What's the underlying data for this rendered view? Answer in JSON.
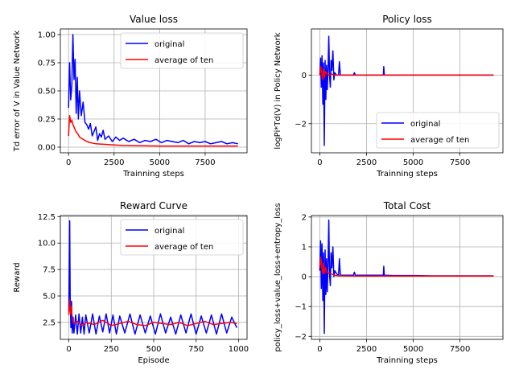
{
  "chart_data": [
    {
      "type": "line",
      "title": "Value loss",
      "xlabel": "Trainning steps",
      "ylabel": "Td error of V in Value Network",
      "xlim": [
        -450,
        9800
      ],
      "ylim": [
        -0.05,
        1.05
      ],
      "xticks": [
        0,
        2500,
        5000,
        7500
      ],
      "xtick_labels": [
        "0",
        "2500",
        "5000",
        "7500"
      ],
      "yticks": [
        0.0,
        0.25,
        0.5,
        0.75,
        1.0
      ],
      "ytick_labels": [
        "0.00",
        "0.25",
        "0.50",
        "0.75",
        "1.00"
      ],
      "grid": true,
      "legend": {
        "placement": "top-right",
        "entries": [
          "original",
          "average of ten"
        ]
      },
      "series": [
        {
          "name": "original",
          "color": "#0000ff",
          "x": [
            0,
            60,
            120,
            180,
            240,
            300,
            360,
            420,
            480,
            540,
            600,
            700,
            800,
            900,
            1000,
            1100,
            1200,
            1300,
            1400,
            1500,
            1600,
            1700,
            1800,
            1900,
            2000,
            2200,
            2400,
            2600,
            2800,
            3000,
            3300,
            3600,
            3900,
            4200,
            4500,
            4800,
            5100,
            5400,
            5700,
            6000,
            6300,
            6600,
            6900,
            7200,
            7500,
            7800,
            8100,
            8400,
            8700,
            9000,
            9300
          ],
          "y": [
            0.35,
            0.75,
            0.42,
            0.55,
            1.0,
            0.6,
            0.78,
            0.3,
            0.62,
            0.25,
            0.5,
            0.28,
            0.4,
            0.22,
            0.2,
            0.16,
            0.21,
            0.1,
            0.14,
            0.18,
            0.06,
            0.12,
            0.09,
            0.15,
            0.07,
            0.1,
            0.05,
            0.09,
            0.06,
            0.08,
            0.05,
            0.07,
            0.04,
            0.06,
            0.05,
            0.07,
            0.04,
            0.06,
            0.05,
            0.04,
            0.06,
            0.03,
            0.05,
            0.04,
            0.05,
            0.03,
            0.04,
            0.05,
            0.03,
            0.04,
            0.03
          ]
        },
        {
          "name": "average of ten",
          "color": "#ff0000",
          "x": [
            0,
            60,
            120,
            180,
            240,
            300,
            400,
            500,
            600,
            800,
            1000,
            1200,
            1500,
            2000,
            2500,
            3000,
            4000,
            5000,
            6000,
            7000,
            8000,
            9000,
            9300
          ],
          "y": [
            0.1,
            0.28,
            0.22,
            0.24,
            0.2,
            0.18,
            0.14,
            0.12,
            0.09,
            0.07,
            0.05,
            0.04,
            0.03,
            0.025,
            0.02,
            0.015,
            0.012,
            0.01,
            0.01,
            0.01,
            0.01,
            0.01,
            0.01
          ]
        }
      ]
    },
    {
      "type": "line",
      "title": "Policy loss",
      "xlabel": "Trainning steps",
      "ylabel": "logPi*Td(V) in Policy Network",
      "xlim": [
        -450,
        9800
      ],
      "ylim": [
        -3.2,
        1.9
      ],
      "xticks": [
        0,
        2500,
        5000,
        7500
      ],
      "xtick_labels": [
        "0",
        "2500",
        "5000",
        "7500"
      ],
      "yticks": [
        -2,
        0
      ],
      "ytick_labels": [
        "−2",
        "0"
      ],
      "grid": true,
      "legend": {
        "placement": "lower-right",
        "entries": [
          "original",
          "average of ten"
        ]
      },
      "series": [
        {
          "name": "original",
          "color": "#0000ff",
          "x": [
            0,
            40,
            80,
            120,
            160,
            200,
            240,
            280,
            320,
            360,
            400,
            440,
            480,
            520,
            560,
            600,
            650,
            700,
            750,
            800,
            900,
            1000,
            1050,
            1100,
            1300,
            1500,
            1800,
            1850,
            1900,
            2500,
            3000,
            3400,
            3420,
            3450,
            4000,
            5000,
            6000,
            7000,
            8000,
            9000,
            9300
          ],
          "y": [
            0.0,
            0.7,
            -0.5,
            0.8,
            -1.2,
            0.5,
            -2.9,
            0.6,
            -1.0,
            0.4,
            -0.6,
            0.3,
            1.6,
            0.0,
            -0.5,
            0.6,
            0.2,
            1.0,
            -0.2,
            0.1,
            0.0,
            0.0,
            0.55,
            0.0,
            0.0,
            0.0,
            0.0,
            0.1,
            0.0,
            0.0,
            0.0,
            0.0,
            0.35,
            0.0,
            0.0,
            0.0,
            0.0,
            0.0,
            0.0,
            0.0,
            0.0
          ]
        },
        {
          "name": "average of ten",
          "color": "#ff0000",
          "x": [
            0,
            50,
            100,
            150,
            200,
            250,
            300,
            400,
            500,
            600,
            800,
            1000,
            2000,
            4000,
            6000,
            8000,
            9300
          ],
          "y": [
            0.0,
            0.35,
            0.1,
            -0.2,
            0.25,
            -0.1,
            0.15,
            0.05,
            0.0,
            0.05,
            0.0,
            0.0,
            0.0,
            0.0,
            0.0,
            0.0,
            0.0
          ]
        }
      ]
    },
    {
      "type": "line",
      "title": "Reward Curve",
      "xlabel": "Episode",
      "ylabel": "Reward",
      "xlim": [
        -50,
        1050
      ],
      "ylim": [
        0.9,
        12.6
      ],
      "xticks": [
        0,
        250,
        500,
        750,
        1000
      ],
      "xtick_labels": [
        "0",
        "250",
        "500",
        "750",
        "1000"
      ],
      "yticks": [
        2.5,
        5.0,
        7.5,
        10.0,
        12.5
      ],
      "ytick_labels": [
        "2.5",
        "5.0",
        "7.5",
        "10.0",
        "12.5"
      ],
      "grid": true,
      "legend": {
        "placement": "top-right",
        "entries": [
          "original",
          "average of ten"
        ]
      },
      "series": [
        {
          "name": "original",
          "color": "#0000ff",
          "x": [
            0,
            5,
            8,
            12,
            16,
            20,
            25,
            30,
            40,
            50,
            60,
            70,
            80,
            90,
            100,
            120,
            140,
            160,
            180,
            200,
            220,
            240,
            260,
            280,
            300,
            330,
            360,
            390,
            420,
            450,
            480,
            510,
            540,
            570,
            600,
            630,
            660,
            690,
            720,
            750,
            780,
            810,
            840,
            870,
            900,
            930,
            960,
            990
          ],
          "y": [
            3.5,
            12.1,
            5.0,
            2.0,
            4.5,
            1.5,
            3.0,
            1.5,
            3.2,
            1.4,
            3.3,
            1.5,
            3.0,
            1.4,
            3.2,
            1.5,
            3.3,
            1.4,
            3.1,
            1.6,
            3.3,
            1.5,
            3.2,
            1.4,
            3.1,
            1.5,
            3.3,
            1.4,
            3.2,
            1.5,
            3.1,
            1.4,
            3.3,
            1.5,
            3.0,
            1.4,
            3.2,
            1.5,
            3.3,
            1.4,
            3.1,
            1.5,
            3.2,
            1.4,
            3.3,
            1.5,
            3.0,
            2.0
          ]
        },
        {
          "name": "average of ten",
          "color": "#ff0000",
          "x": [
            0,
            5,
            10,
            15,
            20,
            30,
            50,
            80,
            100,
            150,
            200,
            250,
            300,
            350,
            400,
            450,
            500,
            550,
            600,
            650,
            700,
            750,
            800,
            850,
            900,
            950,
            990
          ],
          "y": [
            3.2,
            4.6,
            3.3,
            4.0,
            2.8,
            2.4,
            2.6,
            2.2,
            2.5,
            2.3,
            2.7,
            2.2,
            2.4,
            2.6,
            2.3,
            2.2,
            2.5,
            2.4,
            2.3,
            2.5,
            2.2,
            2.4,
            2.6,
            2.3,
            2.4,
            2.5,
            2.4
          ]
        }
      ]
    },
    {
      "type": "line",
      "title": "Total Cost",
      "xlabel": "Trainning steps",
      "ylabel": "policy_loss+value_loss+entropy_loss",
      "xlim": [
        -450,
        9800
      ],
      "ylim": [
        -2.1,
        2.05
      ],
      "xticks": [
        0,
        2500,
        5000,
        7500
      ],
      "xtick_labels": [
        "0",
        "2500",
        "5000",
        "7500"
      ],
      "yticks": [
        -2,
        -1,
        0,
        1,
        2
      ],
      "ytick_labels": [
        "−2",
        "−1",
        "0",
        "1",
        "2"
      ],
      "grid": true,
      "legend": {
        "placement": "none",
        "entries": []
      },
      "series": [
        {
          "name": "",
          "color": "#0000ff",
          "x": [
            0,
            40,
            80,
            120,
            160,
            200,
            240,
            280,
            320,
            360,
            400,
            440,
            480,
            520,
            560,
            600,
            650,
            700,
            750,
            800,
            900,
            1000,
            1050,
            1100,
            1300,
            1500,
            1800,
            1850,
            1900,
            2500,
            3000,
            3400,
            3420,
            3450,
            4000,
            5000,
            6000,
            7000,
            8000,
            9000,
            9300
          ],
          "y": [
            0.2,
            1.2,
            -0.4,
            1.1,
            -0.8,
            0.8,
            -1.9,
            0.9,
            -0.6,
            0.6,
            -0.5,
            0.5,
            1.9,
            0.1,
            -0.3,
            0.8,
            0.3,
            1.0,
            0.0,
            0.2,
            0.1,
            0.05,
            0.6,
            0.05,
            0.05,
            0.05,
            0.05,
            0.15,
            0.05,
            0.05,
            0.05,
            0.05,
            0.35,
            0.05,
            0.04,
            0.04,
            0.03,
            0.03,
            0.03,
            0.03,
            0.03
          ]
        },
        {
          "name": "",
          "color": "#ff0000",
          "x": [
            0,
            50,
            100,
            150,
            200,
            250,
            300,
            400,
            500,
            600,
            800,
            1000,
            2000,
            4000,
            6000,
            8000,
            9300
          ],
          "y": [
            0.3,
            0.65,
            0.35,
            0.1,
            0.45,
            0.1,
            0.3,
            0.15,
            0.1,
            0.1,
            0.05,
            0.03,
            0.02,
            0.02,
            0.02,
            0.02,
            0.02
          ]
        }
      ]
    }
  ]
}
